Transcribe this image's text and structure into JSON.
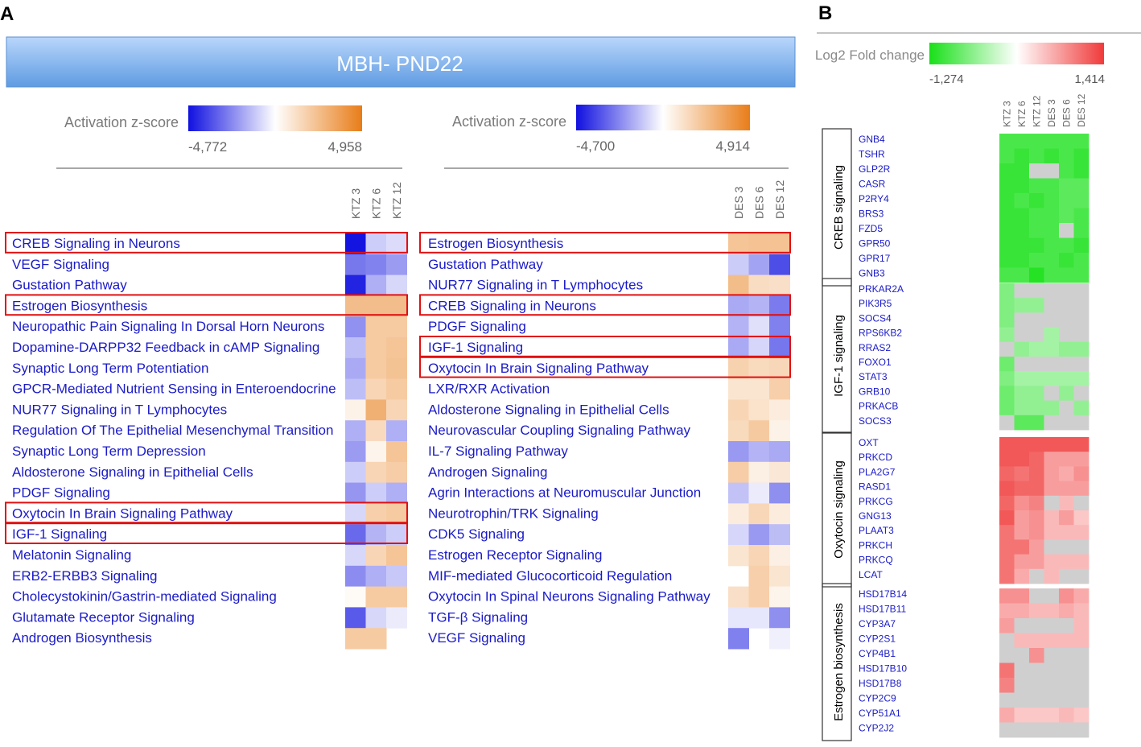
{
  "panels": {
    "a_label": "A",
    "b_label": "B"
  },
  "banner": {
    "title": "MBH- PND22"
  },
  "colors": {
    "ipa_neg": "#1010e0",
    "ipa_pos": "#e87d18",
    "fc_neg": "#18e018",
    "fc_pos": "#f03a3a",
    "missing": "#cfcfcf",
    "highlight": "#e01010",
    "pathway_text": "#1a1ac8",
    "banner_top": "#b9d6fb",
    "banner_bottom": "#5e9be2"
  },
  "chart_data": [
    {
      "type": "heatmap",
      "scale_label": "Activation z-score",
      "scale_min": "-4,772",
      "scale_max": "4,958",
      "vmin": -4.772,
      "vmax": 4.958,
      "columns": [
        "KTZ 3",
        "KTZ 6",
        "KTZ 12"
      ],
      "rows": [
        "CREB Signaling in Neurons",
        "VEGF Signaling",
        "Gustation Pathway",
        "Estrogen Biosynthesis",
        "Neuropathic Pain Signaling In Dorsal Horn Neurons",
        "Dopamine-DARPP32 Feedback in cAMP Signaling",
        "Synaptic Long Term Potentiation",
        "GPCR-Mediated Nutrient Sensing in Enteroendocrine",
        "NUR77 Signaling in T Lymphocytes",
        "Regulation Of The Epithelial Mesenchymal Transition",
        "Synaptic Long Term Depression",
        "Aldosterone Signaling in Epithelial Cells",
        "PDGF Signaling",
        "Oxytocin In Brain Signaling Pathway",
        "IGF-1 Signaling",
        "Melatonin Signaling",
        "ERB2-ERBB3 Signaling",
        "Cholecystokinin/Gastrin-mediated Signaling",
        "Glutamate Receptor Signaling",
        "Androgen Biosynthesis"
      ],
      "highlighted": [
        "CREB Signaling in Neurons",
        "Estrogen Biosynthesis",
        "Oxytocin In Brain Signaling Pathway",
        "IGF-1 Signaling"
      ],
      "values": [
        [
          -4.7,
          -1.0,
          -0.7
        ],
        [
          -2.7,
          -2.5,
          -2.0
        ],
        [
          -4.4,
          -1.6,
          -0.8
        ],
        [
          2.5,
          2.5,
          2.5
        ],
        [
          -2.2,
          2.0,
          2.0
        ],
        [
          -1.3,
          2.0,
          2.2
        ],
        [
          -1.7,
          2.0,
          2.3
        ],
        [
          -1.3,
          1.6,
          2.0
        ],
        [
          0.5,
          3.0,
          1.6
        ],
        [
          -1.6,
          1.4,
          -1.6
        ],
        [
          -2.0,
          0.4,
          2.2
        ],
        [
          -1.0,
          1.6,
          1.9
        ],
        [
          -2.1,
          -1.0,
          -1.6
        ],
        [
          -0.8,
          1.8,
          2.0
        ],
        [
          -3.0,
          -1.5,
          -1.0
        ],
        [
          -0.8,
          1.6,
          2.2
        ],
        [
          -2.3,
          -1.6,
          -1.1
        ],
        [
          0.2,
          2.0,
          2.0
        ],
        [
          -3.3,
          -0.8,
          -0.4
        ],
        [
          2.0,
          2.0,
          null
        ]
      ]
    },
    {
      "type": "heatmap",
      "scale_label": "Activation z-score",
      "scale_min": "-4,700",
      "scale_max": "4,914",
      "vmin": -4.7,
      "vmax": 4.914,
      "columns": [
        "DES 3",
        "DES 6",
        "DES 12"
      ],
      "rows": [
        "Estrogen Biosynthesis",
        "Gustation Pathway",
        "NUR77 Signaling in T Lymphocytes",
        "CREB Signaling in Neurons",
        "PDGF Signaling",
        "IGF-1 Signaling",
        "Oxytocin In Brain Signaling Pathway",
        "LXR/RXR Activation",
        "Aldosterone Signaling in Epithelial Cells",
        "Neurovascular Coupling Signaling Pathway",
        "IL-7 Signaling Pathway",
        "Androgen Signaling",
        "Agrin Interactions at Neuromuscular Junction",
        "Neurotrophin/TRK Signaling",
        "CDK5 Signaling",
        "Estrogen Receptor Signaling",
        "MIF-mediated Glucocorticoid Regulation",
        "Oxytocin In Spinal Neurons Signaling Pathway",
        "TGF-β Signaling",
        "VEGF Signaling"
      ],
      "highlighted": [
        "Estrogen Biosynthesis",
        "CREB Signaling in Neurons",
        "IGF-1 Signaling",
        "Oxytocin In Brain Signaling Pathway"
      ],
      "values": [
        [
          2.2,
          2.3,
          2.3
        ],
        [
          -1.0,
          -1.8,
          -3.5
        ],
        [
          2.5,
          1.3,
          1.2
        ],
        [
          -1.7,
          -1.5,
          -2.6
        ],
        [
          -1.5,
          -0.6,
          -2.5
        ],
        [
          -1.7,
          -0.8,
          -2.7
        ],
        [
          1.7,
          1.4,
          1.5
        ],
        [
          1.0,
          1.0,
          1.8
        ],
        [
          1.6,
          1.1,
          0.7
        ],
        [
          1.4,
          2.0,
          0.5
        ],
        [
          -2.0,
          -1.5,
          -1.7
        ],
        [
          1.9,
          0.6,
          0.9
        ],
        [
          -1.2,
          -0.4,
          -2.2
        ],
        [
          0.7,
          1.5,
          0.7
        ],
        [
          -0.8,
          -2.0,
          -1.3
        ],
        [
          1.0,
          1.6,
          0.6
        ],
        [
          null,
          1.8,
          1.0
        ],
        [
          1.2,
          1.8,
          0.4
        ],
        [
          -0.5,
          -0.5,
          -2.2
        ],
        [
          -2.5,
          null,
          -0.3
        ]
      ]
    },
    {
      "type": "heatmap",
      "scale_label": "Log2 Fold change",
      "scale_min": "-1,274",
      "scale_max": "1,414",
      "vmin": -1.274,
      "vmax": 1.414,
      "columns": [
        "KTZ 3",
        "KTZ 6",
        "KTZ 12",
        "DES 3",
        "DES 6",
        "DES 12"
      ],
      "groups": [
        {
          "name": "CREB signaling",
          "genes": [
            "GNB4",
            "TSHR",
            "GLP2R",
            "CASR",
            "P2RY4",
            "BRS3",
            "FZD5",
            "GPR50",
            "GPR17",
            "GNB3"
          ],
          "values": [
            [
              -1.0,
              -1.0,
              -1.0,
              -1.0,
              -1.0,
              -1.0
            ],
            [
              -1.0,
              -1.1,
              -1.0,
              -1.1,
              -1.0,
              -1.1
            ],
            [
              -1.1,
              -1.1,
              null,
              null,
              -1.0,
              -1.1
            ],
            [
              -1.1,
              -1.1,
              -1.0,
              -1.0,
              -0.9,
              -0.9
            ],
            [
              -1.1,
              -1.0,
              -1.1,
              -1.0,
              -0.9,
              -0.9
            ],
            [
              -1.1,
              -1.1,
              -1.0,
              -1.0,
              -0.9,
              -1.0
            ],
            [
              -1.1,
              -1.1,
              -1.0,
              -1.0,
              null,
              -1.0
            ],
            [
              -1.1,
              -1.1,
              -1.1,
              -1.0,
              -1.0,
              -1.1
            ],
            [
              -1.1,
              -1.1,
              -1.0,
              -1.0,
              -1.1,
              -1.0
            ],
            [
              -1.0,
              -1.0,
              -1.2,
              -1.0,
              -1.0,
              -1.0
            ]
          ]
        },
        {
          "name": "IGF-1 signaling",
          "genes": [
            "PRKAR2A",
            "PIK3R5",
            "SOCS4",
            "RPS6KB2",
            "RRAS2",
            "FOXO1",
            "STAT3",
            "GRB10",
            "PRKACB",
            "SOCS3"
          ],
          "values": [
            [
              -0.7,
              null,
              null,
              null,
              null,
              null
            ],
            [
              -0.7,
              -0.6,
              -0.6,
              null,
              null,
              null
            ],
            [
              -0.7,
              null,
              null,
              null,
              null,
              null
            ],
            [
              -0.6,
              null,
              null,
              -0.5,
              null,
              null
            ],
            [
              null,
              -0.6,
              -0.5,
              -0.5,
              -0.6,
              -0.6
            ],
            [
              -0.8,
              null,
              null,
              null,
              null,
              null
            ],
            [
              -0.7,
              -0.5,
              -0.5,
              -0.5,
              -0.5,
              -0.5
            ],
            [
              -0.8,
              -0.6,
              -0.6,
              null,
              -0.6,
              null
            ],
            [
              -0.8,
              -0.6,
              -0.6,
              -0.6,
              null,
              -0.6
            ],
            [
              null,
              -0.9,
              -0.9,
              null,
              null,
              null
            ]
          ]
        },
        {
          "name": "Oxytocin signaling",
          "genes": [
            "OXT",
            "PRKCD",
            "PLA2G7",
            "RASD1",
            "PRKCG",
            "GNG13",
            "PLAAT3",
            "PRKCH",
            "PRKCQ",
            "LCAT"
          ],
          "values": [
            [
              1.2,
              1.2,
              1.2,
              1.2,
              1.2,
              1.2
            ],
            [
              1.2,
              1.2,
              1.1,
              0.7,
              0.7,
              0.7
            ],
            [
              1.1,
              1.0,
              1.1,
              0.7,
              0.6,
              0.8
            ],
            [
              1.2,
              1.1,
              1.1,
              0.7,
              0.7,
              0.7
            ],
            [
              1.1,
              0.8,
              0.9,
              null,
              0.5,
              null
            ],
            [
              1.2,
              0.7,
              0.8,
              0.5,
              0.7,
              0.4
            ],
            [
              1.0,
              0.7,
              0.8,
              0.5,
              0.5,
              0.5
            ],
            [
              1.0,
              1.0,
              0.7,
              null,
              null,
              null
            ],
            [
              1.0,
              0.7,
              0.7,
              0.5,
              0.5,
              0.5
            ],
            [
              1.0,
              0.6,
              null,
              0.5,
              null,
              null
            ]
          ]
        },
        {
          "name": "Estrogen biosynthesis",
          "genes": [
            "HSD17B14",
            "HSD17B11",
            "CYP3A7",
            "CYP2S1",
            "CYP4B1",
            "HSD17B10",
            "HSD17B8",
            "CYP2C9",
            "CYP51A1",
            "CYP2J2"
          ],
          "values": [
            [
              0.8,
              0.8,
              null,
              null,
              0.8,
              0.6
            ],
            [
              0.6,
              0.6,
              0.5,
              0.5,
              0.6,
              0.5
            ],
            [
              0.7,
              null,
              null,
              null,
              null,
              0.5
            ],
            [
              null,
              0.5,
              0.5,
              0.5,
              0.5,
              0.5
            ],
            [
              null,
              null,
              0.8,
              null,
              null,
              null
            ],
            [
              1.0,
              null,
              null,
              null,
              null,
              null
            ],
            [
              0.9,
              null,
              null,
              null,
              null,
              null
            ],
            [
              null,
              null,
              null,
              null,
              null,
              null
            ],
            [
              0.6,
              0.4,
              0.4,
              0.4,
              0.5,
              0.4
            ],
            [
              null,
              null,
              null,
              null,
              null,
              null
            ]
          ]
        }
      ]
    }
  ]
}
